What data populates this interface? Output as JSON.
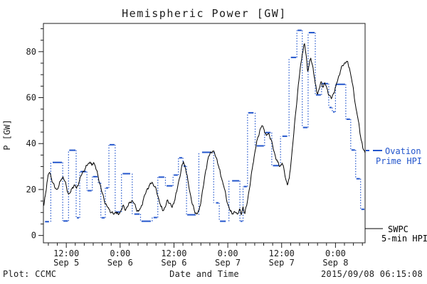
{
  "title": "Hemispheric Power [GW]",
  "footer": {
    "left": "Plot: CCMC",
    "center": "Date and Time",
    "right": "2015/09/08 06:15:08"
  },
  "colors": {
    "ovation_blue": "#2255cc",
    "swpc_black": "#000000",
    "ink": "#1c1c1c"
  },
  "chart_data": {
    "type": "line",
    "title": "Hemispheric Power [GW]",
    "xlabel": "Date and Time",
    "ylabel": "P [GW]",
    "x_unit": "hours since 2015-09-05 00:00 UT",
    "xlim": [
      6.9,
      78.6
    ],
    "ylim": [
      -3.2,
      92.3
    ],
    "grid": false,
    "y_major_ticks": [
      0,
      20,
      40,
      60,
      80
    ],
    "y_minor_step": 5,
    "x_minor_step": 2,
    "x_major_ticks": [
      {
        "t": 12,
        "lines": [
          "12:00",
          "Sep 5"
        ]
      },
      {
        "t": 24,
        "lines": [
          "0:00",
          "Sep 6"
        ]
      },
      {
        "t": 36,
        "lines": [
          "12:00",
          "Sep 6"
        ]
      },
      {
        "t": 48,
        "lines": [
          "0:00",
          "Sep 7"
        ]
      },
      {
        "t": 60,
        "lines": [
          "12:00",
          "Sep 7"
        ]
      },
      {
        "t": 72,
        "lines": [
          "0:00",
          "Sep 8"
        ]
      }
    ],
    "legend": [
      {
        "series": "ovation",
        "lines": [
          "Ovation",
          "Prime HPI"
        ],
        "style": "dashed",
        "color": "#2255cc",
        "position": "right-middle"
      },
      {
        "series": "swpc",
        "lines": [
          "SWPC",
          "5-min HPI"
        ],
        "style": "solid",
        "color": "#000000",
        "position": "right-bottom"
      }
    ],
    "series": [
      {
        "name": "Ovation Prime HPI",
        "style": "stepped-dash-dotted",
        "color": "#2255cc",
        "steps": [
          [
            7.1,
            8.3,
            6.0
          ],
          [
            8.8,
            11.2,
            31.8
          ],
          [
            11.2,
            12.5,
            6.3
          ],
          [
            12.5,
            14.2,
            37.1
          ],
          [
            14.2,
            15.0,
            7.7
          ],
          [
            15.0,
            16.6,
            27.8
          ],
          [
            16.6,
            17.8,
            19.5
          ],
          [
            17.8,
            19.1,
            25.6
          ],
          [
            19.1,
            19.7,
            22.9
          ],
          [
            19.7,
            20.7,
            7.7
          ],
          [
            20.7,
            21.5,
            20.7
          ],
          [
            21.5,
            22.9,
            39.5
          ],
          [
            22.9,
            24.2,
            10.2
          ],
          [
            24.4,
            26.4,
            26.9
          ],
          [
            27.0,
            28.5,
            9.3
          ],
          [
            28.6,
            31.0,
            6.2
          ],
          [
            31.3,
            32.4,
            7.8
          ],
          [
            32.4,
            34.0,
            25.4
          ],
          [
            34.2,
            35.8,
            21.6
          ],
          [
            35.8,
            37.0,
            26.3
          ],
          [
            37.0,
            38.0,
            33.8
          ],
          [
            38.0,
            38.8,
            30.2
          ],
          [
            38.8,
            41.0,
            9.0
          ],
          [
            42.1,
            44.5,
            36.2
          ],
          [
            45.2,
            46.1,
            14.2
          ],
          [
            46.1,
            47.7,
            6.2
          ],
          [
            48.8,
            50.7,
            23.8
          ],
          [
            50.7,
            51.4,
            6.2
          ],
          [
            51.4,
            52.4,
            21.3
          ],
          [
            52.4,
            53.9,
            53.4
          ],
          [
            54.3,
            56.2,
            39.0
          ],
          [
            56.2,
            57.7,
            44.8
          ],
          [
            57.9,
            59.5,
            30.4
          ],
          [
            60.0,
            61.4,
            43.2
          ],
          [
            61.9,
            63.4,
            77.5
          ],
          [
            63.4,
            64.6,
            89.3
          ],
          [
            64.6,
            65.9,
            47.0
          ],
          [
            65.9,
            67.5,
            88.3
          ],
          [
            67.5,
            68.9,
            61.2
          ],
          [
            68.9,
            70.5,
            66.1
          ],
          [
            70.5,
            71.3,
            55.7
          ],
          [
            71.3,
            72.0,
            53.8
          ],
          [
            72.0,
            74.3,
            65.8
          ],
          [
            74.3,
            75.4,
            50.6
          ],
          [
            75.4,
            76.5,
            37.2
          ],
          [
            76.5,
            77.6,
            24.7
          ],
          [
            77.6,
            78.6,
            11.4
          ]
        ]
      },
      {
        "name": "SWPC 5-min HPI",
        "style": "solid-line",
        "color": "#000000",
        "points": [
          [
            7.0,
            13.0
          ],
          [
            7.3,
            17.0
          ],
          [
            7.7,
            23.0
          ],
          [
            8.0,
            26.5
          ],
          [
            8.3,
            27.5
          ],
          [
            8.6,
            25.5
          ],
          [
            9.0,
            23.0
          ],
          [
            9.4,
            21.0
          ],
          [
            9.9,
            20.0
          ],
          [
            10.4,
            22.0
          ],
          [
            10.9,
            24.5
          ],
          [
            11.3,
            25.5
          ],
          [
            11.7,
            23.5
          ],
          [
            12.1,
            20.5
          ],
          [
            12.5,
            18.0
          ],
          [
            13.0,
            19.0
          ],
          [
            13.4,
            21.0
          ],
          [
            13.9,
            22.0
          ],
          [
            14.3,
            20.5
          ],
          [
            14.8,
            23.0
          ],
          [
            15.3,
            26.0
          ],
          [
            15.8,
            28.0
          ],
          [
            16.3,
            29.5
          ],
          [
            16.8,
            31.0
          ],
          [
            17.3,
            32.0
          ],
          [
            17.7,
            30.5
          ],
          [
            18.1,
            31.8
          ],
          [
            18.5,
            30.0
          ],
          [
            19.0,
            26.5
          ],
          [
            19.5,
            22.5
          ],
          [
            20.0,
            18.5
          ],
          [
            20.5,
            15.0
          ],
          [
            21.0,
            13.0
          ],
          [
            21.5,
            11.5
          ],
          [
            22.1,
            10.0
          ],
          [
            22.6,
            9.2
          ],
          [
            23.1,
            10.3
          ],
          [
            23.6,
            9.0
          ],
          [
            24.1,
            10.5
          ],
          [
            24.6,
            13.0
          ],
          [
            25.1,
            11.0
          ],
          [
            25.6,
            12.5
          ],
          [
            26.1,
            14.2
          ],
          [
            26.6,
            15.2
          ],
          [
            27.1,
            14.0
          ],
          [
            27.6,
            11.5
          ],
          [
            28.1,
            10.5
          ],
          [
            28.6,
            12.0
          ],
          [
            29.1,
            15.0
          ],
          [
            29.6,
            18.0
          ],
          [
            30.1,
            20.5
          ],
          [
            30.6,
            22.0
          ],
          [
            31.1,
            23.2
          ],
          [
            31.6,
            21.5
          ],
          [
            32.1,
            19.5
          ],
          [
            32.6,
            16.0
          ],
          [
            33.1,
            12.5
          ],
          [
            33.6,
            10.8
          ],
          [
            34.1,
            12.5
          ],
          [
            34.6,
            15.5
          ],
          [
            35.1,
            14.0
          ],
          [
            35.6,
            12.2
          ],
          [
            36.1,
            15.0
          ],
          [
            36.6,
            19.0
          ],
          [
            37.1,
            24.0
          ],
          [
            37.6,
            28.5
          ],
          [
            38.1,
            32.2
          ],
          [
            38.6,
            29.0
          ],
          [
            39.1,
            24.0
          ],
          [
            39.6,
            18.5
          ],
          [
            40.1,
            13.5
          ],
          [
            40.6,
            10.5
          ],
          [
            41.1,
            9.3
          ],
          [
            41.6,
            11.0
          ],
          [
            42.1,
            16.0
          ],
          [
            42.6,
            22.0
          ],
          [
            43.1,
            28.5
          ],
          [
            43.6,
            33.5
          ],
          [
            44.1,
            36.0
          ],
          [
            44.6,
            36.7
          ],
          [
            45.1,
            35.5
          ],
          [
            45.6,
            33.0
          ],
          [
            46.1,
            29.0
          ],
          [
            46.6,
            25.0
          ],
          [
            47.1,
            21.5
          ],
          [
            47.6,
            17.0
          ],
          [
            48.1,
            13.0
          ],
          [
            48.6,
            10.5
          ],
          [
            49.1,
            9.5
          ],
          [
            49.6,
            10.2
          ],
          [
            50.1,
            9.3
          ],
          [
            50.6,
            11.5
          ],
          [
            51.0,
            9.0
          ],
          [
            51.4,
            12.5
          ],
          [
            51.8,
            9.5
          ],
          [
            52.2,
            13.0
          ],
          [
            52.6,
            18.0
          ],
          [
            53.1,
            24.0
          ],
          [
            53.6,
            31.0
          ],
          [
            54.1,
            37.0
          ],
          [
            54.6,
            42.0
          ],
          [
            55.1,
            45.5
          ],
          [
            55.6,
            47.8
          ],
          [
            56.1,
            46.0
          ],
          [
            56.6,
            43.5
          ],
          [
            57.1,
            44.5
          ],
          [
            57.6,
            42.0
          ],
          [
            58.1,
            38.0
          ],
          [
            58.6,
            34.5
          ],
          [
            59.1,
            32.0
          ],
          [
            59.6,
            30.0
          ],
          [
            60.1,
            31.5
          ],
          [
            60.6,
            28.0
          ],
          [
            61.0,
            24.0
          ],
          [
            61.3,
            22.0
          ],
          [
            61.7,
            25.0
          ],
          [
            62.1,
            32.0
          ],
          [
            62.6,
            42.0
          ],
          [
            63.1,
            53.0
          ],
          [
            63.6,
            63.0
          ],
          [
            64.1,
            72.0
          ],
          [
            64.6,
            79.0
          ],
          [
            65.1,
            83.5
          ],
          [
            65.5,
            78.0
          ],
          [
            65.8,
            71.5
          ],
          [
            66.1,
            74.0
          ],
          [
            66.5,
            77.2
          ],
          [
            67.0,
            73.0
          ],
          [
            67.5,
            66.0
          ],
          [
            68.0,
            61.5
          ],
          [
            68.4,
            64.0
          ],
          [
            68.8,
            67.0
          ],
          [
            69.2,
            64.5
          ],
          [
            69.6,
            66.5
          ],
          [
            70.1,
            64.0
          ],
          [
            70.6,
            61.0
          ],
          [
            71.1,
            59.5
          ],
          [
            71.6,
            62.0
          ],
          [
            72.1,
            65.0
          ],
          [
            72.6,
            68.5
          ],
          [
            73.1,
            71.5
          ],
          [
            73.6,
            74.0
          ],
          [
            74.1,
            75.2
          ],
          [
            74.6,
            75.8
          ],
          [
            75.1,
            73.0
          ],
          [
            75.6,
            68.0
          ],
          [
            76.1,
            62.0
          ],
          [
            76.6,
            55.0
          ],
          [
            77.1,
            50.0
          ],
          [
            77.6,
            43.0
          ],
          [
            78.1,
            38.0
          ],
          [
            78.6,
            36.0
          ]
        ]
      }
    ]
  }
}
